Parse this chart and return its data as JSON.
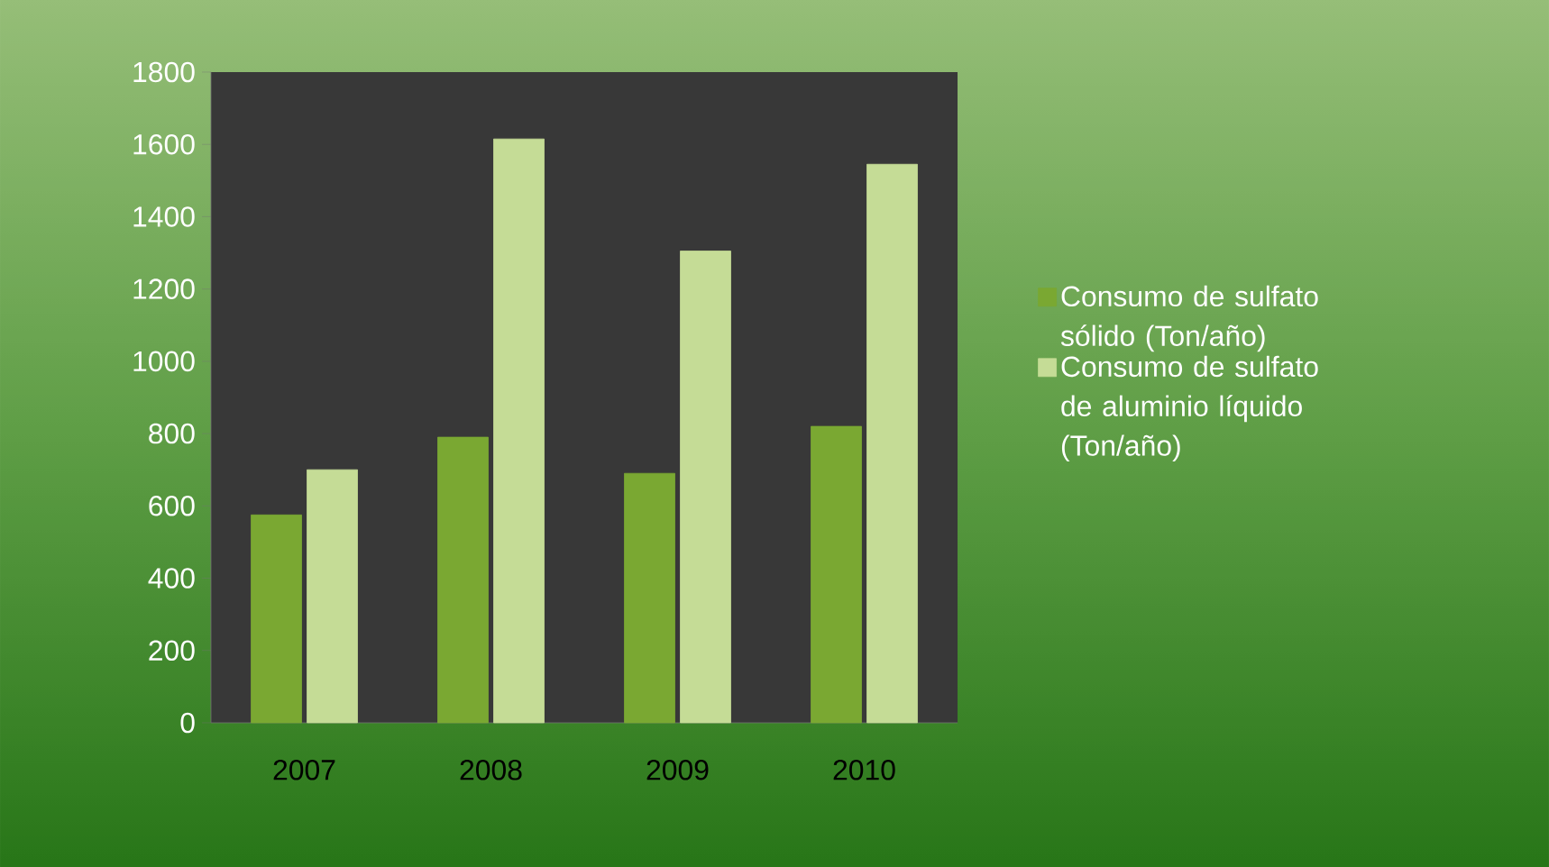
{
  "chart_data": {
    "type": "bar",
    "categories": [
      "2007",
      "2008",
      "2009",
      "2010"
    ],
    "series": [
      {
        "name": "Consumo de sulfato sólido (Ton/año)",
        "color": "#7aa832",
        "values": [
          575,
          790,
          690,
          820
        ]
      },
      {
        "name": "Consumo de sulfato de aluminio líquido (Ton/año)",
        "color": "#c5dc96",
        "values": [
          700,
          1615,
          1305,
          1545
        ]
      }
    ],
    "ylim": [
      0,
      1800
    ],
    "yticks": [
      0,
      200,
      400,
      600,
      800,
      1000,
      1200,
      1400,
      1600,
      1800
    ],
    "legend": "right"
  }
}
